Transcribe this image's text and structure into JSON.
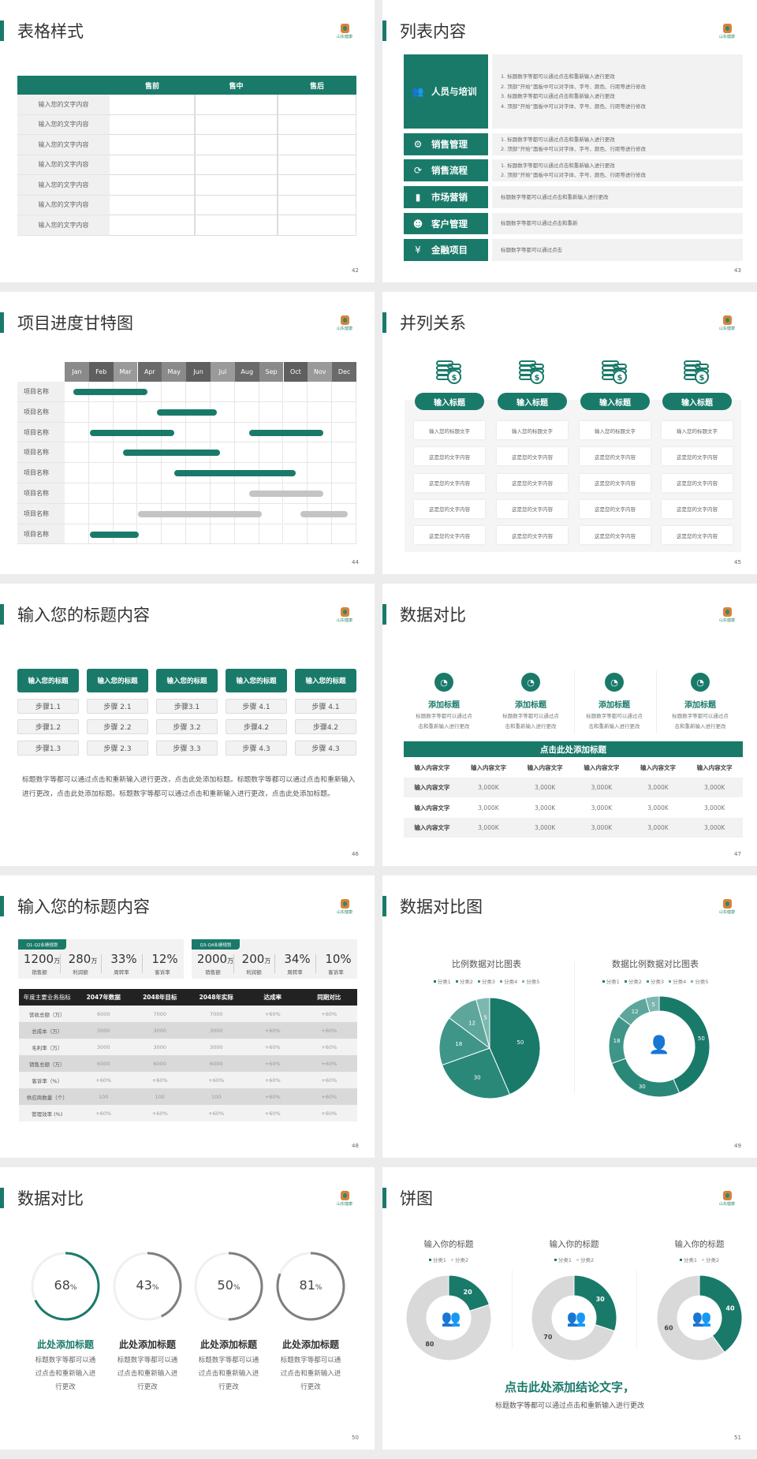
{
  "brand": {
    "accent": "#1a7a6a",
    "logo_text": "山东健康"
  },
  "slides": {
    "s42": {
      "title": "表格样式",
      "page": "42",
      "headers": [
        "",
        "售前",
        "售中",
        "售后"
      ],
      "rows": [
        "输入您的文字内容",
        "输入您的文字内容",
        "输入您的文字内容",
        "输入您的文字内容",
        "输入您的文字内容",
        "输入您的文字内容",
        "输入您的文字内容"
      ]
    },
    "s43": {
      "title": "列表内容",
      "page": "43",
      "items": [
        {
          "label": "人员与培训",
          "icon": "team-training-icon",
          "lines": [
            "1.  标题数字等都可以通过点击和重新输入进行更改",
            "2.  顶部“开始”面板中可以对字体、字号、颜色、行距等进行修改",
            "3.  标题数字等都可以通过点击和重新输入进行更改",
            "4.  顶部“开始”面板中可以对字体、字号、颜色、行距等进行修改"
          ]
        },
        {
          "label": "销售管理",
          "icon": "user-gear-icon",
          "lines": [
            "1.  标题数字等都可以通过点击和重新输入进行更改",
            "2.  顶部“开始”面板中可以对字体、字号、颜色、行距等进行修改"
          ]
        },
        {
          "label": "销售流程",
          "icon": "cycle-icon",
          "lines": [
            "1.  标题数字等都可以通过点击和重新输入进行更改",
            "2.  顶部“开始”面板中可以对字体、字号、颜色、行距等进行修改"
          ]
        },
        {
          "label": "市场营销",
          "icon": "bar-chart-icon",
          "lines": [
            "标题数字等都可以通过点击和重新输入进行更改"
          ]
        },
        {
          "label": "客户管理",
          "icon": "users-icon",
          "lines": [
            "标题数字等都可以通过点击和重新"
          ]
        },
        {
          "label": "金融项目",
          "icon": "money-hand-icon",
          "lines": [
            "标题数字等都可以通过点击"
          ]
        }
      ]
    },
    "s44": {
      "title": "项目进度甘特图",
      "page": "44",
      "months": [
        "Jan",
        "Feb",
        "Mar",
        "Apr",
        "May",
        "Jun",
        "Jul",
        "Aug",
        "Sep",
        "Oct",
        "Nov",
        "Dec"
      ],
      "rows": [
        {
          "label": "项目名称",
          "bars": [
            {
              "start": 0.35,
              "end": 3.4,
              "status": "active"
            }
          ]
        },
        {
          "label": "项目名称",
          "bars": [
            {
              "start": 3.8,
              "end": 6.25,
              "status": "active"
            }
          ]
        },
        {
          "label": "项目名称",
          "bars": [
            {
              "start": 1.05,
              "end": 4.5,
              "status": "active"
            },
            {
              "start": 7.6,
              "end": 10.65,
              "status": "active"
            }
          ]
        },
        {
          "label": "项目名称",
          "bars": [
            {
              "start": 2.4,
              "end": 6.4,
              "status": "active"
            }
          ]
        },
        {
          "label": "项目名称",
          "bars": [
            {
              "start": 4.5,
              "end": 9.5,
              "status": "active"
            }
          ]
        },
        {
          "label": "项目名称",
          "bars": [
            {
              "start": 7.6,
              "end": 10.65,
              "status": "planned"
            }
          ]
        },
        {
          "label": "项目名称",
          "bars": [
            {
              "start": 3.0,
              "end": 8.1,
              "status": "planned"
            },
            {
              "start": 9.7,
              "end": 11.65,
              "status": "planned"
            }
          ]
        },
        {
          "label": "项目名称",
          "bars": [
            {
              "start": 1.05,
              "end": 3.05,
              "status": "active"
            }
          ]
        }
      ],
      "colors": {
        "active": "#1a7a6a",
        "planned": "#c4c4c4"
      }
    },
    "s45": {
      "title": "并列关系",
      "page": "45",
      "columns": [
        {
          "heading": "输入标题",
          "cells": [
            "输入您的标题文字",
            "这是您的文字内容",
            "这是您的文字内容",
            "这是您的文字内容",
            "这是您的文字内容"
          ]
        },
        {
          "heading": "输入标题",
          "cells": [
            "输入您的标题文字",
            "这是您的文字内容",
            "这是您的文字内容",
            "这是您的文字内容",
            "这是您的文字内容"
          ]
        },
        {
          "heading": "输入标题",
          "cells": [
            "输入您的标题文字",
            "这是您的文字内容",
            "这是您的文字内容",
            "这是您的文字内容",
            "这是您的文字内容"
          ]
        },
        {
          "heading": "输入标题",
          "cells": [
            "输入您的标题文字",
            "这是您的文字内容",
            "这是您的文字内容",
            "这是您的文字内容",
            "这是您的文字内容"
          ]
        }
      ]
    },
    "s46": {
      "title": "输入您的标题内容",
      "page": "46",
      "columns": [
        {
          "heading": "输入您的标题",
          "steps": [
            "步骤1.1",
            "步骤1.2",
            "步骤1.3"
          ]
        },
        {
          "heading": "输入您的标题",
          "steps": [
            "步骤 2.1",
            "步骤 2.2",
            "步骤 2.3"
          ]
        },
        {
          "heading": "输入您的标题",
          "steps": [
            "步骤3.1",
            "步骤 3.2",
            "步骤 3.3"
          ]
        },
        {
          "heading": "输入您的标题",
          "steps": [
            "步骤 4.1",
            "步骤4.2",
            "步骤 4.3"
          ]
        },
        {
          "heading": "输入您的标题",
          "steps": [
            "步骤 4.1",
            "步骤4.2",
            "步骤 4.3"
          ]
        }
      ],
      "paragraph": "标题数字等都可以通过点击和重新输入进行更改，点击此处添加标题。标题数字等都可以通过点击和重新输入进行更改，点击此处添加标题。标题数字等都可以通过点击和重新输入进行更改，点击此处添加标题。"
    },
    "s47": {
      "title": "数据对比",
      "page": "47",
      "features": [
        {
          "heading": "添加标题",
          "text": [
            "标题数字等都可以通过点",
            "击和重新输入进行更改"
          ]
        },
        {
          "heading": "添加标题",
          "text": [
            "标题数字等都可以通过点",
            "击和重新输入进行更改"
          ]
        },
        {
          "heading": "添加标题",
          "text": [
            "标题数字等都可以通过点",
            "击和重新输入进行更改"
          ]
        },
        {
          "heading": "添加标题",
          "text": [
            "标题数字等都可以通过点",
            "击和重新输入进行更改"
          ]
        }
      ],
      "table_title": "点击此处添加标题",
      "headers": [
        "输入内容文字",
        "输入内容文字",
        "输入内容文字",
        "输入内容文字",
        "输入内容文字",
        "输入内容文字"
      ],
      "rows": [
        [
          "输入内容文字",
          "3,000K",
          "3,000K",
          "3,000K",
          "3,000K",
          "3,000K"
        ],
        [
          "输入内容文字",
          "3,000K",
          "3,000K",
          "3,000K",
          "3,000K",
          "3,000K"
        ],
        [
          "输入内容文字",
          "3,000K",
          "3,000K",
          "3,000K",
          "3,000K",
          "3,000K"
        ]
      ]
    },
    "s48": {
      "title": "输入您的标题内容",
      "page": "48",
      "panels": [
        {
          "tag": "Q1-Q2业绩规划",
          "kpis": [
            {
              "value": "1200",
              "unit": "万",
              "label": "销售额"
            },
            {
              "value": "280",
              "unit": "万",
              "label": "利润额"
            },
            {
              "value": "33%",
              "unit": "",
              "label": "周转率"
            },
            {
              "value": "12%",
              "unit": "",
              "label": "客诉率"
            }
          ]
        },
        {
          "tag": "Q3-Q4业绩规划",
          "kpis": [
            {
              "value": "2000",
              "unit": "万",
              "label": "销售额"
            },
            {
              "value": "200",
              "unit": "万",
              "label": "利润额"
            },
            {
              "value": "34%",
              "unit": "",
              "label": "周转率"
            },
            {
              "value": "10%",
              "unit": "",
              "label": "客诉率"
            }
          ]
        }
      ],
      "headers": [
        "年度主要业务指标",
        "2047年数据",
        "2048年目标",
        "2048年实际",
        "达成率",
        "同期对比"
      ],
      "rows": [
        [
          "营收总额（万）",
          "6000",
          "7000",
          "7000",
          "+60%",
          "+60%"
        ],
        [
          "总成本（万）",
          "3000",
          "3000",
          "3000",
          "+60%",
          "+60%"
        ],
        [
          "毛利率（万）",
          "3000",
          "3000",
          "3000",
          "+60%",
          "+60%"
        ],
        [
          "销售总额（万）",
          "6000",
          "6000",
          "6000",
          "+60%",
          "+60%"
        ],
        [
          "客诉率（%）",
          "+60%",
          "+60%",
          "+60%",
          "+60%",
          "+60%"
        ],
        [
          "供应商数量（个）",
          "100",
          "100",
          "100",
          "+60%",
          "+60%"
        ],
        [
          "管理效率 (%)",
          "+60%",
          "+60%",
          "+60%",
          "+60%",
          "+60%"
        ]
      ]
    },
    "s49": {
      "title": "数据对比图",
      "page": "49"
    },
    "s50": {
      "title": "数据对比",
      "page": "50",
      "rings": [
        {
          "value": 68,
          "unit": "%",
          "heading": "此处添加标题",
          "text": [
            "标题数字等都可以通",
            "过点击和重新输入进",
            "行更改"
          ],
          "color": "#1a7a6a"
        },
        {
          "value": 43,
          "unit": "%",
          "heading": "此处添加标题",
          "text": [
            "标题数字等都可以通",
            "过点击和重新输入进",
            "行更改"
          ],
          "color": "#7f7f7f"
        },
        {
          "value": 50,
          "unit": "%",
          "heading": "此处添加标题",
          "text": [
            "标题数字等都可以通",
            "过点击和重新输入进",
            "行更改"
          ],
          "color": "#7f7f7f"
        },
        {
          "value": 81,
          "unit": "%",
          "heading": "此处添加标题",
          "text": [
            "标题数字等都可以通",
            "过点击和重新输入进",
            "行更改"
          ],
          "color": "#7f7f7f"
        }
      ]
    },
    "s51": {
      "title": "饼图",
      "page": "51",
      "conclusion": "点击此处添加结论文字，",
      "subtext": "标题数字等都可以通过点击和重新输入进行更改"
    }
  },
  "chart_data": [
    {
      "type": "pie",
      "title": "比例数据对比图表",
      "categories": [
        "分类1",
        "分类2",
        "分类3",
        "分类4",
        "分类5"
      ],
      "values": [
        50,
        30,
        18,
        12,
        5
      ],
      "colors": [
        "#1a7a6a",
        "#2a8878",
        "#3f9688",
        "#5ea69b",
        "#7db8b0"
      ],
      "legend": "top"
    },
    {
      "type": "pie",
      "donut": true,
      "title": "数据比例数据对比图表",
      "categories": [
        "分类1",
        "分类2",
        "分类3",
        "分类4",
        "分类5"
      ],
      "values": [
        50,
        30,
        18,
        12,
        5
      ],
      "colors": [
        "#1a7a6a",
        "#2a8878",
        "#3f9688",
        "#5ea69b",
        "#7db8b0"
      ],
      "legend": "top"
    },
    {
      "type": "pie",
      "donut": true,
      "title": "输入你的标题",
      "categories": [
        "分类1",
        "分类2"
      ],
      "values": [
        20,
        80
      ],
      "colors": [
        "#1a7a6a",
        "#d9d9d9"
      ],
      "legend": "top"
    },
    {
      "type": "pie",
      "donut": true,
      "title": "输入你的标题",
      "categories": [
        "分类1",
        "分类2"
      ],
      "values": [
        30,
        70
      ],
      "colors": [
        "#1a7a6a",
        "#d9d9d9"
      ],
      "legend": "top"
    },
    {
      "type": "pie",
      "donut": true,
      "title": "输入你的标题",
      "categories": [
        "分类1",
        "分类2"
      ],
      "values": [
        40,
        60
      ],
      "colors": [
        "#1a7a6a",
        "#d9d9d9"
      ],
      "legend": "top"
    }
  ]
}
